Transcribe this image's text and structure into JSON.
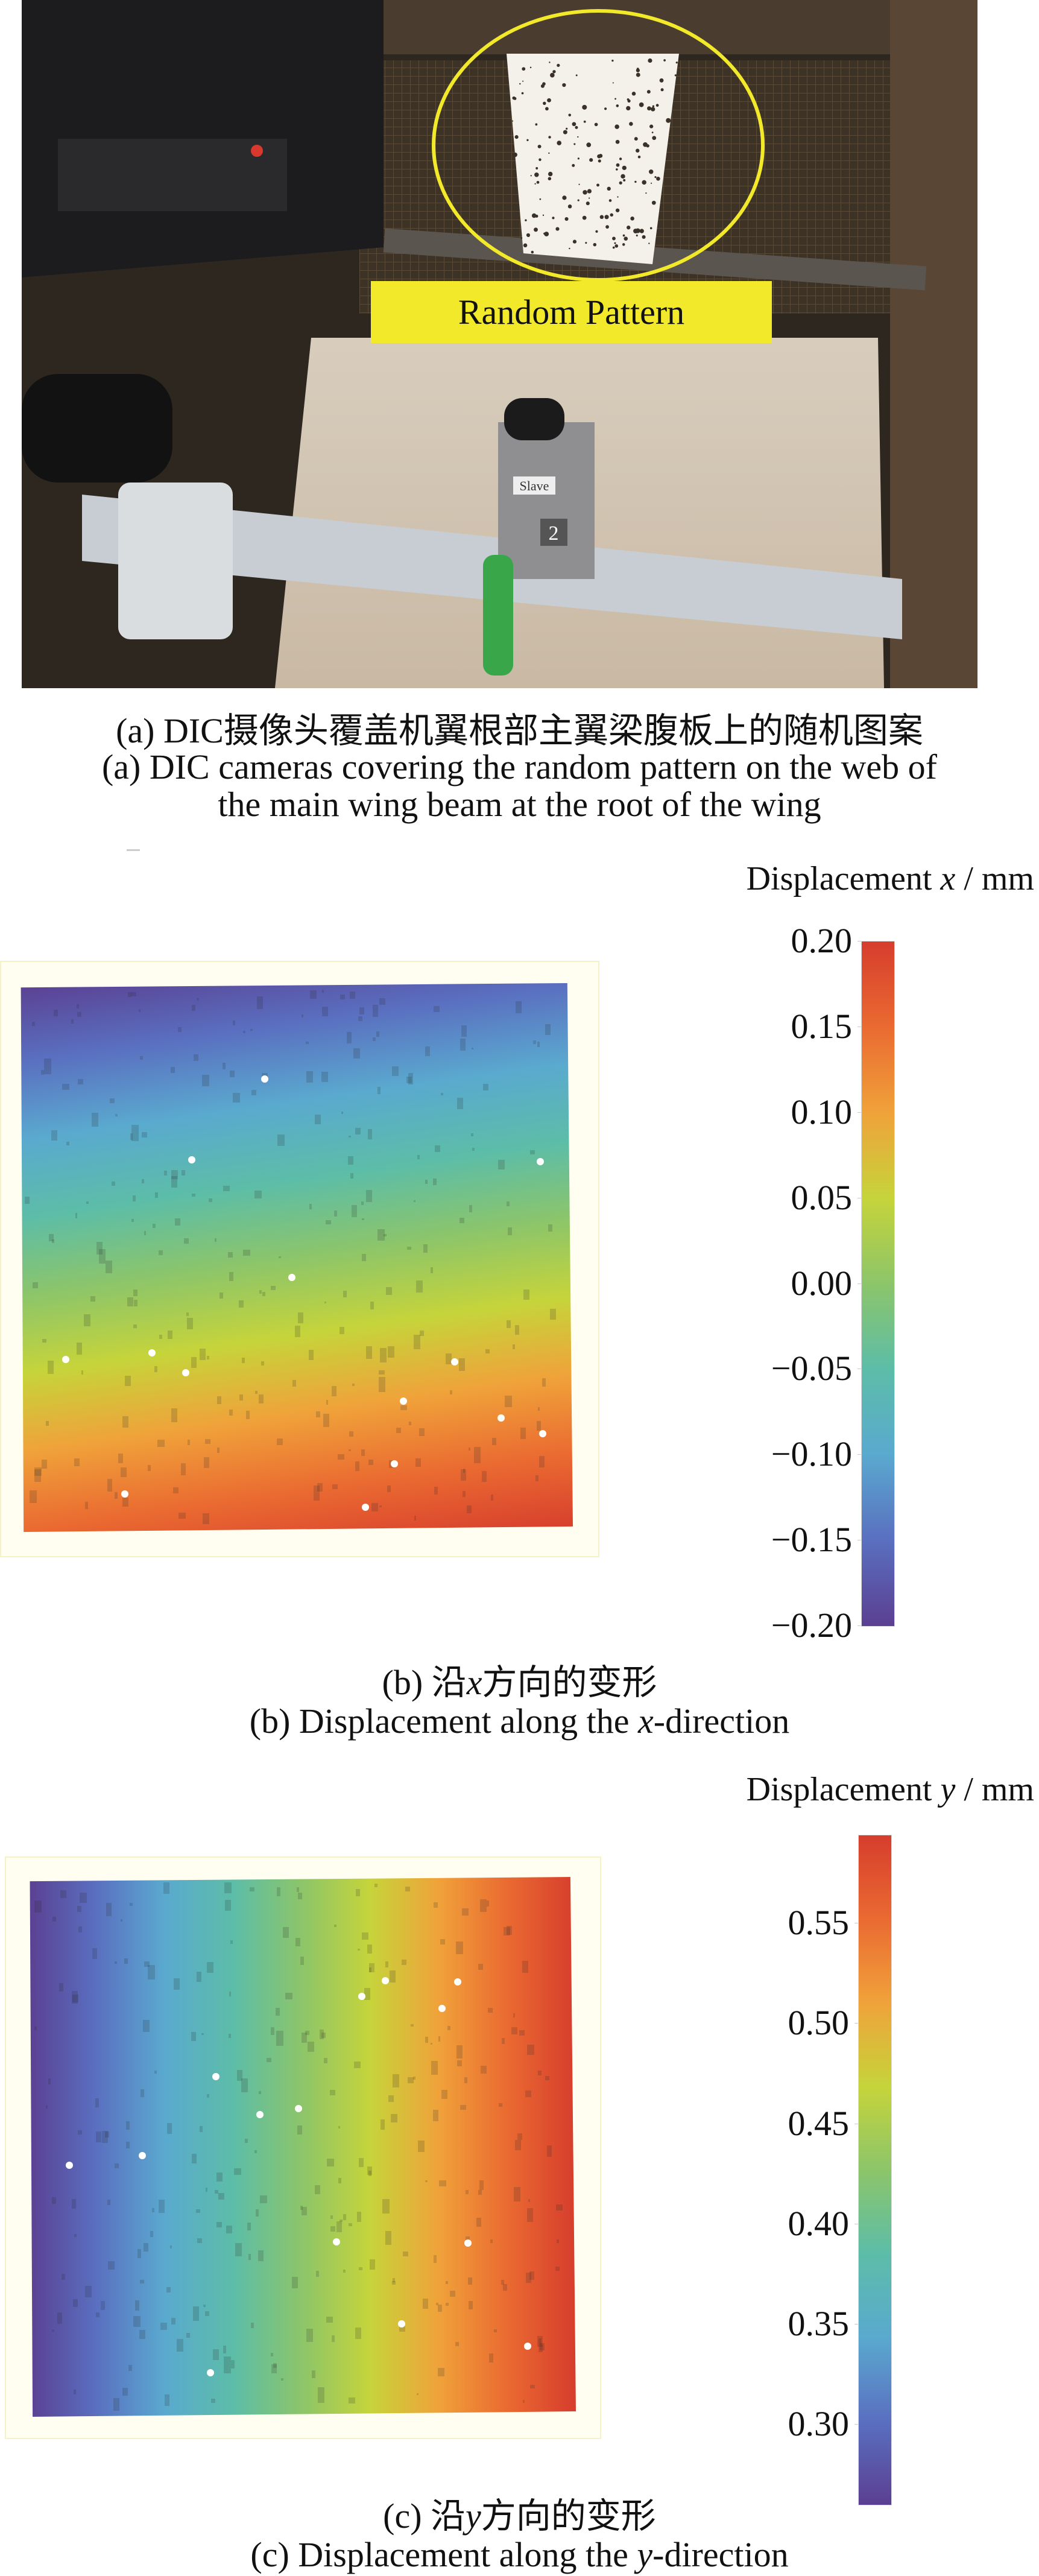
{
  "panel_a": {
    "photo_label": "Random Pattern",
    "camera_badge": "Slave",
    "camera_number": "2",
    "caption_cn": "(a) DIC摄像头覆盖机翼根部主翼梁腹板上的随机图案",
    "caption_en_line1": "(a) DIC cameras covering the random pattern on the web of",
    "caption_en_line2": "the main wing beam at the root of the wing",
    "highlight_color": "#f2e92a"
  },
  "panel_b": {
    "colorbar_title_prefix": "Displacement ",
    "colorbar_title_var": "x",
    "colorbar_title_suffix": " / mm",
    "caption_cn_prefix": "(b) 沿",
    "caption_cn_var": "x",
    "caption_cn_suffix": "方向的变形",
    "caption_en_prefix": "(b) Displacement along the ",
    "caption_en_var": "x",
    "caption_en_suffix": "-direction"
  },
  "panel_c": {
    "colorbar_title_prefix": "Displacement ",
    "colorbar_title_var": "y",
    "colorbar_title_suffix": " / mm",
    "caption_cn_prefix": "(c) 沿",
    "caption_cn_var": "y",
    "caption_cn_suffix": "方向的变形",
    "caption_en_prefix": "(c) Displacement along the ",
    "caption_en_var": "y",
    "caption_en_suffix": "-direction"
  },
  "chart_data": [
    {
      "type": "heatmap",
      "title": "Displacement x / mm",
      "field_direction": "increases from top-right (min) to bottom (max)",
      "gradient_angle_deg": 172,
      "range": [
        -0.2,
        0.2
      ],
      "colorbar_ticks": [
        "0.20",
        "0.15",
        "0.10",
        "0.05",
        "0.00",
        "−0.05",
        "−0.10",
        "−0.15",
        "−0.20"
      ],
      "tick_values": [
        0.2,
        0.15,
        0.1,
        0.05,
        0.0,
        -0.05,
        -0.1,
        -0.15,
        -0.2
      ],
      "colormap": [
        "#5b3f91",
        "#5a6fc0",
        "#5aa9cf",
        "#5cbda8",
        "#8cc56a",
        "#c6d43a",
        "#f0a23a",
        "#ea6a31",
        "#d63d2d"
      ]
    },
    {
      "type": "heatmap",
      "title": "Displacement y / mm",
      "field_direction": "increases from left (min) to right (max)",
      "gradient_angle_deg": 90,
      "range": [
        0.26,
        0.594
      ],
      "colorbar_ticks": [
        "0.55",
        "0.50",
        "0.45",
        "0.40",
        "0.35",
        "0.30"
      ],
      "tick_values": [
        0.55,
        0.5,
        0.45,
        0.4,
        0.35,
        0.3
      ],
      "colormap": [
        "#5b3f91",
        "#5a6fc0",
        "#5aa9cf",
        "#5cbda8",
        "#8cc56a",
        "#c6d43a",
        "#f0a23a",
        "#ea6a31",
        "#d63d2d"
      ]
    }
  ]
}
